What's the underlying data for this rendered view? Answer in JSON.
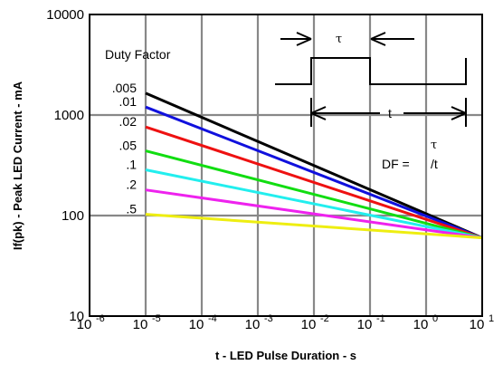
{
  "chart_data": {
    "type": "line",
    "title": "",
    "xlabel": "t - LED Pulse Duration - s",
    "ylabel": "If(pk) - Peak LED Current - mA",
    "x_scale": "log",
    "y_scale": "log",
    "xlim": [
      1e-06,
      10
    ],
    "ylim": [
      10,
      10000
    ],
    "grid": true,
    "x_ticks": [
      {
        "value": 1e-06,
        "base": "10",
        "exp": "-6"
      },
      {
        "value": 1e-05,
        "base": "10",
        "exp": "-5"
      },
      {
        "value": 0.0001,
        "base": "10",
        "exp": "-4"
      },
      {
        "value": 0.001,
        "base": "10",
        "exp": "-3"
      },
      {
        "value": 0.01,
        "base": "10",
        "exp": "-2"
      },
      {
        "value": 0.1,
        "base": "10",
        "exp": "-1"
      },
      {
        "value": 1,
        "base": "10",
        "exp": "0"
      },
      {
        "value": 10,
        "base": "10",
        "exp": "1"
      }
    ],
    "y_ticks": [
      {
        "value": 10,
        "label": "10"
      },
      {
        "value": 100,
        "label": "100"
      },
      {
        "value": 1000,
        "label": "1000"
      },
      {
        "value": 10000,
        "label": "10000"
      }
    ],
    "legend_title": "Duty Factor",
    "series": [
      {
        "name": ".005",
        "color": "#000000",
        "x": [
          1e-05,
          10
        ],
        "y": [
          1650,
          60
        ]
      },
      {
        "name": ".01",
        "color": "#1010dd",
        "x": [
          1e-05,
          10
        ],
        "y": [
          1200,
          60
        ]
      },
      {
        "name": ".02",
        "color": "#ee1111",
        "x": [
          1e-05,
          10
        ],
        "y": [
          760,
          60
        ]
      },
      {
        "name": ".05",
        "color": "#11dd11",
        "x": [
          1e-05,
          10
        ],
        "y": [
          440,
          60
        ]
      },
      {
        "name": ".1",
        "color": "#22eeee",
        "x": [
          1e-05,
          10
        ],
        "y": [
          285,
          60
        ]
      },
      {
        "name": ".2",
        "color": "#ee22ee",
        "x": [
          1e-05,
          10
        ],
        "y": [
          180,
          60
        ]
      },
      {
        "name": ".5",
        "color": "#eeee11",
        "x": [
          1e-05,
          10
        ],
        "y": [
          103,
          60
        ]
      }
    ],
    "annotations": {
      "tau": "τ",
      "t": "t",
      "df_prefix": "DF = ",
      "df_tau": "τ",
      "df_suffix": "/t"
    }
  }
}
